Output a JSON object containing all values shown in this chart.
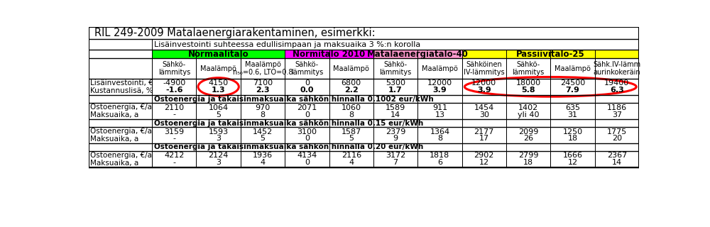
{
  "title": "RIL 249-2009 Matalaenergiarakentaminen, esimerkki:",
  "subtitle": "Lisäinvestointi suhteessa edullisimpaan ja maksuaika 3 %:n korolla",
  "col_headers": [
    "Sähkö-\nlämmitys",
    "Maalämpö",
    "Maalämpö\nn₅₀=0.6, LTO=0.8",
    "Sähkö-\nlämmitys",
    "Maalämpö",
    "Sähkö-\nlämmitys",
    "Maalämpö",
    "Sähköinen\nIV-lämmitys",
    "Sähkö-\nlämmitys",
    "Maalämpö",
    "Sähk.IV-lämm\naurinkokeräin"
  ],
  "section_headers": [
    "Ostoenergia ja takaisinmaksuaika sähkön hinnalla 0.1002 eur/kWh",
    "Ostoenergia ja takaisinmaksuaika sähkön hinnalla 0.15 eur/kWh",
    "Ostoenergia ja takaisinmaksuaika sähkön hinnalla 0.20 eur/kWh"
  ],
  "invest_row1": [
    "-4900",
    "4150",
    "7100",
    "0",
    "6800",
    "5300",
    "12000",
    "12000",
    "18000",
    "24500",
    "19400"
  ],
  "invest_row2": [
    "-1.6",
    "1.3",
    "2.3",
    "0.0",
    "2.2",
    "1.7",
    "3.9",
    "3.9",
    "5.8",
    "7.9",
    "6.3"
  ],
  "energy_0102_row1": [
    "2110",
    "1064",
    "970",
    "2071",
    "1060",
    "1589",
    "911",
    "1454",
    "1402",
    "635",
    "1186"
  ],
  "energy_0102_row2": [
    "-",
    "5",
    "8",
    "0",
    "8",
    "14",
    "13",
    "30",
    "yli 40",
    "31",
    "37"
  ],
  "energy_015_row1": [
    "3159",
    "1593",
    "1452",
    "3100",
    "1587",
    "2379",
    "1364",
    "2177",
    "2099",
    "1250",
    "1775"
  ],
  "energy_015_row2": [
    "-",
    "3",
    "5",
    "0",
    "5",
    "9",
    "8",
    "17",
    "26",
    "18",
    "20"
  ],
  "energy_020_row1": [
    "4212",
    "2124",
    "1936",
    "4134",
    "2116",
    "3172",
    "1818",
    "2902",
    "2799",
    "1666",
    "2367"
  ],
  "energy_020_row2": [
    "-",
    "3",
    "4",
    "0",
    "4",
    "7",
    "6",
    "12",
    "18",
    "12",
    "14"
  ],
  "group_normaalitalo_color": "#00FF00",
  "group_normitalo_color": "#FF00FF",
  "group_matala_color": "#FF99CC",
  "group_passiivi_color": "#FFFF00",
  "row_label_invest": "Lisäinvestointi, €\nKustannuslisä, %",
  "row_label_energy": "Ostoenergia, €/a\nMaksuaika, a"
}
